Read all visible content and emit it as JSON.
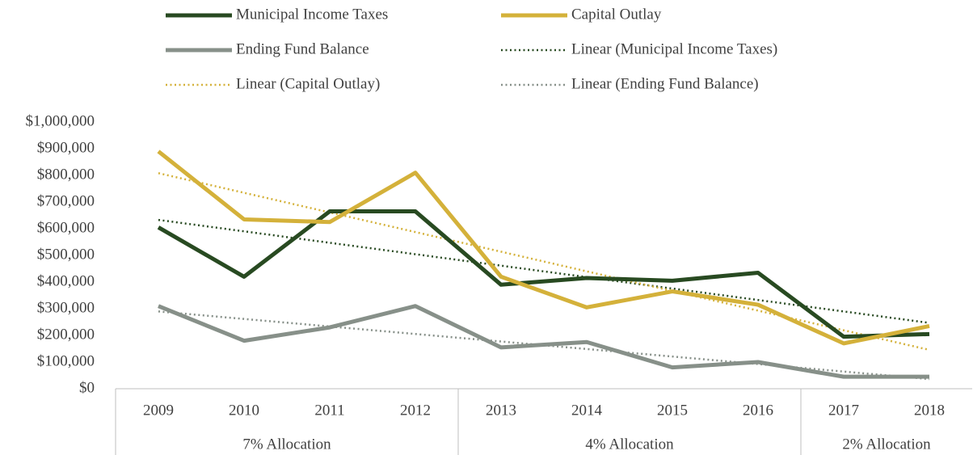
{
  "chart_data": {
    "type": "line",
    "categories": [
      "2009",
      "2010",
      "2011",
      "2012",
      "2013",
      "2014",
      "2015",
      "2016",
      "2017",
      "2018"
    ],
    "groups": [
      {
        "label": "7% Allocation",
        "count": 4
      },
      {
        "label": "4% Allocation",
        "count": 4
      },
      {
        "label": "2% Allocation",
        "count": 2
      }
    ],
    "series": [
      {
        "name": "Municipal Income Taxes",
        "color": "#284a21",
        "values": [
          605000,
          420000,
          665000,
          665000,
          390000,
          415000,
          405000,
          435000,
          195000,
          205000
        ],
        "trendline": {
          "name": "Linear (Municipal Income Taxes)"
        }
      },
      {
        "name": "Capital Outlay",
        "color": "#d4b13a",
        "values": [
          890000,
          635000,
          625000,
          810000,
          420000,
          305000,
          365000,
          315000,
          170000,
          235000
        ],
        "trendline": {
          "name": "Linear (Capital Outlay)"
        }
      },
      {
        "name": "Ending Fund Balance",
        "color": "#879089",
        "values": [
          310000,
          180000,
          230000,
          310000,
          155000,
          175000,
          80000,
          100000,
          45000,
          45000
        ],
        "trendline": {
          "name": "Linear (Ending Fund Balance)"
        }
      }
    ],
    "ylim": [
      0,
      1000000
    ],
    "yticks": [
      {
        "value": 0,
        "label": "$0"
      },
      {
        "value": 100000,
        "label": "$100,000"
      },
      {
        "value": 200000,
        "label": "$200,000"
      },
      {
        "value": 300000,
        "label": "$300,000"
      },
      {
        "value": 400000,
        "label": "$400,000"
      },
      {
        "value": 500000,
        "label": "$500,000"
      },
      {
        "value": 600000,
        "label": "$600,000"
      },
      {
        "value": 700000,
        "label": "$700,000"
      },
      {
        "value": 800000,
        "label": "$800,000"
      },
      {
        "value": 900000,
        "label": "$900,000"
      },
      {
        "value": 1000000,
        "label": "$1,000,000"
      }
    ],
    "grid": false,
    "legend": "top"
  }
}
